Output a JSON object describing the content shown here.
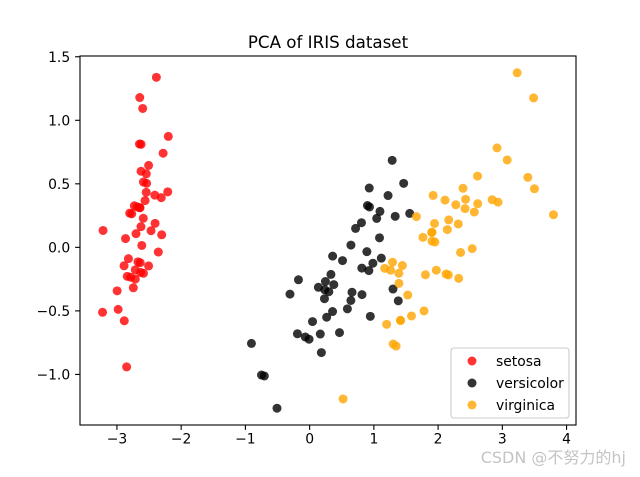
{
  "chart_data": {
    "type": "scatter",
    "title": "PCA of IRIS dataset",
    "xlabel": "",
    "ylabel": "",
    "xlim": [
      -3.575,
      4.147
    ],
    "ylim": [
      -1.398,
      1.506
    ],
    "xticks": [
      -3,
      -2,
      -1,
      0,
      1,
      2,
      3,
      4
    ],
    "xtick_labels": [
      "−3",
      "−2",
      "−1",
      "0",
      "1",
      "2",
      "3",
      "4"
    ],
    "yticks": [
      -1.0,
      -0.5,
      0.0,
      0.5,
      1.0,
      1.5
    ],
    "ytick_labels": [
      "−1.0",
      "−0.5",
      "0.0",
      "0.5",
      "1.0",
      "1.5"
    ],
    "grid": false,
    "legend": {
      "location": "lower right"
    },
    "series": [
      {
        "name": "setosa",
        "color": "#ff0000",
        "points": [
          [
            -2.684,
            0.319
          ],
          [
            -2.714,
            -0.177
          ],
          [
            -2.889,
            -0.145
          ],
          [
            -2.745,
            -0.318
          ],
          [
            -2.729,
            0.327
          ],
          [
            -2.281,
            0.741
          ],
          [
            -2.821,
            -0.089
          ],
          [
            -2.626,
            0.163
          ],
          [
            -2.886,
            -0.578
          ],
          [
            -2.673,
            -0.114
          ],
          [
            -2.507,
            0.645
          ],
          [
            -2.613,
            0.015
          ],
          [
            -2.786,
            -0.235
          ],
          [
            -3.224,
            -0.511
          ],
          [
            -2.645,
            1.179
          ],
          [
            -2.386,
            1.338
          ],
          [
            -2.624,
            0.811
          ],
          [
            -2.648,
            0.312
          ],
          [
            -2.2,
            0.873
          ],
          [
            -2.588,
            0.514
          ],
          [
            -2.31,
            0.391
          ],
          [
            -2.544,
            0.433
          ],
          [
            -3.216,
            0.133
          ],
          [
            -2.303,
            0.099
          ],
          [
            -2.356,
            -0.037
          ],
          [
            -2.507,
            -0.146
          ],
          [
            -2.469,
            0.131
          ],
          [
            -2.562,
            0.368
          ],
          [
            -2.64,
            0.312
          ],
          [
            -2.632,
            -0.197
          ],
          [
            -2.587,
            -0.204
          ],
          [
            -2.41,
            0.411
          ],
          [
            -2.649,
            0.813
          ],
          [
            -2.599,
            1.093
          ],
          [
            -2.637,
            -0.121
          ],
          [
            -2.866,
            0.069
          ],
          [
            -2.625,
            0.599
          ],
          [
            -2.801,
            0.269
          ],
          [
            -2.981,
            -0.488
          ],
          [
            -2.59,
            0.229
          ],
          [
            -2.77,
            0.264
          ],
          [
            -2.849,
            -0.941
          ],
          [
            -2.997,
            -0.342
          ],
          [
            -2.406,
            0.189
          ],
          [
            -2.209,
            0.437
          ],
          [
            -2.714,
            -0.25
          ],
          [
            -2.538,
            0.504
          ],
          [
            -2.839,
            -0.228
          ],
          [
            -2.543,
            0.579
          ],
          [
            -2.703,
            0.108
          ]
        ]
      },
      {
        "name": "versicolor",
        "color": "#000000",
        "points": [
          [
            1.285,
            0.685
          ],
          [
            0.932,
            0.318
          ],
          [
            1.464,
            0.504
          ],
          [
            0.183,
            -0.828
          ],
          [
            1.088,
            0.075
          ],
          [
            0.642,
            -0.418
          ],
          [
            1.095,
            0.283
          ],
          [
            -0.749,
            -1.005
          ],
          [
            1.044,
            0.228
          ],
          [
            -0.009,
            -0.723
          ],
          [
            -0.508,
            -1.266
          ],
          [
            0.512,
            -0.104
          ],
          [
            0.265,
            -0.55
          ],
          [
            0.985,
            -0.125
          ],
          [
            -0.174,
            -0.255
          ],
          [
            0.928,
            0.467
          ],
          [
            0.66,
            -0.353
          ],
          [
            0.236,
            -0.334
          ],
          [
            0.945,
            -0.543
          ],
          [
            0.045,
            -0.584
          ],
          [
            1.116,
            -0.085
          ],
          [
            0.358,
            -0.069
          ],
          [
            1.298,
            -0.328
          ],
          [
            0.922,
            -0.183
          ],
          [
            0.715,
            0.149
          ],
          [
            0.9,
            0.329
          ],
          [
            1.332,
            0.244
          ],
          [
            1.558,
            0.267
          ],
          [
            0.813,
            -0.163
          ],
          [
            -0.306,
            -0.368
          ],
          [
            -0.068,
            -0.705
          ],
          [
            -0.19,
            -0.68
          ],
          [
            0.136,
            -0.314
          ],
          [
            1.38,
            -0.421
          ],
          [
            0.588,
            -0.484
          ],
          [
            0.807,
            0.194
          ],
          [
            1.221,
            0.408
          ],
          [
            0.815,
            -0.372
          ],
          [
            0.246,
            -0.269
          ],
          [
            0.166,
            -0.682
          ],
          [
            0.465,
            -0.671
          ],
          [
            0.891,
            -0.034
          ],
          [
            0.231,
            -0.404
          ],
          [
            -0.705,
            -1.012
          ],
          [
            0.357,
            -0.505
          ],
          [
            0.332,
            -0.213
          ],
          [
            0.376,
            -0.293
          ],
          [
            0.643,
            0.018
          ],
          [
            -0.906,
            -0.756
          ],
          [
            0.299,
            -0.349
          ]
        ]
      },
      {
        "name": "virginica",
        "color": "#ffa500",
        "points": [
          [
            2.531,
            -0.01
          ],
          [
            1.415,
            -0.575
          ],
          [
            2.617,
            0.344
          ],
          [
            1.972,
            -0.18
          ],
          [
            2.35,
            -0.04
          ],
          [
            3.397,
            0.551
          ],
          [
            0.521,
            -1.193
          ],
          [
            2.933,
            0.356
          ],
          [
            2.321,
            -0.244
          ],
          [
            2.917,
            0.783
          ],
          [
            1.662,
            0.242
          ],
          [
            1.803,
            -0.216
          ],
          [
            2.166,
            0.216
          ],
          [
            1.346,
            -0.777
          ],
          [
            1.586,
            -0.54
          ],
          [
            1.904,
            0.119
          ],
          [
            1.95,
            0.042
          ],
          [
            3.487,
            1.176
          ],
          [
            3.796,
            0.257
          ],
          [
            1.301,
            -0.761
          ],
          [
            2.428,
            0.378
          ],
          [
            1.199,
            -0.606
          ],
          [
            3.5,
            0.461
          ],
          [
            1.389,
            -0.204
          ],
          [
            2.275,
            0.335
          ],
          [
            2.614,
            0.561
          ],
          [
            1.259,
            -0.18
          ],
          [
            1.291,
            -0.117
          ],
          [
            2.124,
            -0.21
          ],
          [
            2.388,
            0.465
          ],
          [
            2.842,
            0.375
          ],
          [
            3.231,
            1.374
          ],
          [
            2.159,
            -0.217
          ],
          [
            1.444,
            -0.143
          ],
          [
            1.781,
            -0.5
          ],
          [
            3.076,
            0.688
          ],
          [
            2.144,
            0.14
          ],
          [
            1.905,
            0.049
          ],
          [
            1.169,
            -0.165
          ],
          [
            2.108,
            0.372
          ],
          [
            2.314,
            0.184
          ],
          [
            1.922,
            0.409
          ],
          [
            1.415,
            -0.575
          ],
          [
            2.563,
            0.278
          ],
          [
            2.419,
            0.305
          ],
          [
            1.944,
            0.188
          ],
          [
            1.527,
            -0.375
          ],
          [
            1.764,
            0.079
          ],
          [
            1.901,
            0.117
          ],
          [
            1.39,
            -0.283
          ]
        ]
      }
    ]
  },
  "watermark": "CSDN @不努力的hj"
}
